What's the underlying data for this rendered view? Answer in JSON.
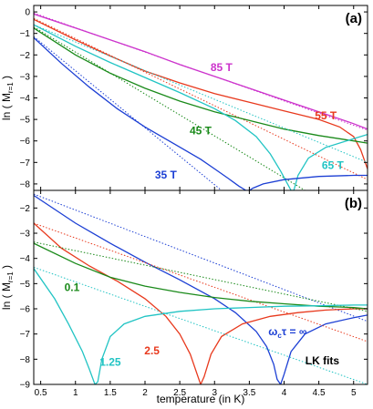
{
  "chart_data": [
    {
      "type": "line",
      "panel_label": "(a)",
      "xlabel": "",
      "ylabel_pre": "ln ( M",
      "ylabel_sub": "r=1",
      "ylabel_post": " )",
      "xlim": [
        0.4,
        5.2
      ],
      "ylim": [
        -8.3,
        0.3
      ],
      "xticks": [
        0.5,
        1,
        1.5,
        2,
        2.5,
        3,
        3.5,
        4,
        4.5,
        5
      ],
      "yticks": [
        0,
        -1,
        -2,
        -3,
        -4,
        -5,
        -6,
        -7,
        -8
      ],
      "show_xtick_labels": false,
      "series": [
        {
          "name": "85 T",
          "color": "#cc33cc",
          "x": [
            0.4,
            1.0,
            1.5,
            2.0,
            2.5,
            3.0,
            3.5,
            4.0,
            4.5,
            5.0,
            5.2
          ],
          "y": [
            -0.1,
            -0.75,
            -1.3,
            -1.85,
            -2.45,
            -3.0,
            -3.55,
            -4.1,
            -4.65,
            -5.2,
            -5.45
          ],
          "fit": {
            "x": [
              0.4,
              5.2
            ],
            "y": [
              -0.05,
              -5.5
            ]
          }
        },
        {
          "name": "55 T",
          "color": "#e8391d",
          "x": [
            0.4,
            1.0,
            1.5,
            2.0,
            2.5,
            3.0,
            3.5,
            4.0,
            4.5,
            4.8,
            5.0,
            5.1,
            5.2
          ],
          "y": [
            -0.35,
            -1.3,
            -2.05,
            -2.75,
            -3.3,
            -3.8,
            -4.2,
            -4.6,
            -5.0,
            -5.35,
            -5.8,
            -6.4,
            -7.3
          ],
          "fit": {
            "x": [
              0.4,
              5.2
            ],
            "y": [
              -0.3,
              -7.8
            ]
          }
        },
        {
          "name": "45 T",
          "color": "#1a8a1a",
          "x": [
            0.4,
            1.0,
            1.5,
            2.0,
            2.5,
            3.0,
            3.5,
            4.0,
            4.5,
            5.0,
            5.2
          ],
          "y": [
            -0.75,
            -2.0,
            -2.85,
            -3.55,
            -4.15,
            -4.65,
            -5.05,
            -5.45,
            -5.75,
            -6.0,
            -6.1
          ],
          "fit": {
            "x": [
              0.4,
              4.3
            ],
            "y": [
              -0.7,
              -8.3
            ]
          }
        },
        {
          "name": "65 T",
          "color": "#22c4c4",
          "x": [
            0.4,
            1.0,
            1.5,
            2.0,
            2.5,
            3.0,
            3.3,
            3.6,
            3.8,
            3.95,
            4.05,
            4.1,
            4.12,
            4.14,
            4.2,
            4.35,
            4.6,
            5.0,
            5.2
          ],
          "y": [
            -0.6,
            -1.6,
            -2.35,
            -3.05,
            -3.75,
            -4.5,
            -5.05,
            -5.8,
            -6.6,
            -7.4,
            -8.0,
            -8.3,
            -8.3,
            -8.3,
            -7.6,
            -6.8,
            -6.3,
            -5.9,
            -5.7
          ],
          "fit": {
            "x": [
              0.4,
              5.2
            ],
            "y": [
              -0.6,
              -7.0
            ]
          }
        },
        {
          "name": "35 T",
          "color": "#1c3fd4",
          "x": [
            0.4,
            0.8,
            1.2,
            1.6,
            2.0,
            2.4,
            2.8,
            3.0,
            3.2,
            3.35,
            3.45,
            3.5,
            3.55,
            3.7,
            4.0,
            4.5,
            5.0,
            5.2
          ],
          "y": [
            -1.2,
            -2.4,
            -3.5,
            -4.5,
            -5.35,
            -6.1,
            -6.85,
            -7.3,
            -7.75,
            -8.1,
            -8.3,
            -8.3,
            -8.2,
            -8.0,
            -7.8,
            -7.65,
            -7.6,
            -7.6
          ],
          "fit": {
            "x": [
              0.4,
              3.1
            ],
            "y": [
              -1.15,
              -8.3
            ]
          }
        }
      ],
      "annotations": [
        {
          "text": "85 T",
          "x": 3.1,
          "y": -2.75,
          "color": "#cc33cc"
        },
        {
          "text": "55 T",
          "x": 4.6,
          "y": -5.0,
          "color": "#e8391d"
        },
        {
          "text": "45 T",
          "x": 2.8,
          "y": -5.7,
          "color": "#1a8a1a"
        },
        {
          "text": "65 T",
          "x": 4.7,
          "y": -7.3,
          "color": "#22c4c4"
        },
        {
          "text": "35 T",
          "x": 2.3,
          "y": -7.75,
          "color": "#1c3fd4"
        }
      ]
    },
    {
      "type": "line",
      "panel_label": "(b)",
      "xlabel": "temperature (in K)",
      "ylabel_pre": "ln ( M",
      "ylabel_sub": "r=1",
      "ylabel_post": " )",
      "xlim": [
        0.4,
        5.2
      ],
      "ylim": [
        -9.0,
        -1.3
      ],
      "xticks": [
        0.5,
        1,
        1.5,
        2,
        2.5,
        3,
        3.5,
        4,
        4.5,
        5
      ],
      "xtick_labels": [
        "0.5",
        "1",
        "1.5",
        "2",
        "2.5",
        "3",
        "3.5",
        "4",
        "4.5",
        "5"
      ],
      "yticks": [
        -2,
        -3,
        -4,
        -5,
        -6,
        -7,
        -8,
        -9
      ],
      "show_xtick_labels": true,
      "series": [
        {
          "name": "ω_c τ = ∞",
          "color": "#1c3fd4",
          "x": [
            0.4,
            1.0,
            1.5,
            2.0,
            2.5,
            3.0,
            3.3,
            3.6,
            3.75,
            3.85,
            3.9,
            3.95,
            4.0,
            4.1,
            4.3,
            4.6,
            5.0,
            5.2
          ],
          "y": [
            -1.5,
            -2.6,
            -3.4,
            -4.15,
            -4.85,
            -5.6,
            -6.15,
            -6.9,
            -7.5,
            -8.2,
            -8.8,
            -9.0,
            -8.6,
            -7.7,
            -7.0,
            -6.6,
            -6.35,
            -6.25
          ],
          "fit": {
            "x": [
              0.4,
              5.2
            ],
            "y": [
              -1.45,
              -6.5
            ]
          }
        },
        {
          "name": "2.5",
          "color": "#e8391d",
          "x": [
            0.4,
            0.8,
            1.2,
            1.6,
            2.0,
            2.3,
            2.5,
            2.65,
            2.75,
            2.8,
            2.85,
            2.95,
            3.1,
            3.4,
            3.8,
            4.2,
            4.6,
            5.0,
            5.2
          ],
          "y": [
            -2.6,
            -3.6,
            -4.3,
            -4.9,
            -5.6,
            -6.3,
            -7.0,
            -7.8,
            -8.6,
            -9.0,
            -8.7,
            -7.8,
            -7.1,
            -6.6,
            -6.3,
            -6.15,
            -6.05,
            -6.0,
            -6.0
          ],
          "fit": {
            "x": [
              0.4,
              5.2
            ],
            "y": [
              -2.6,
              -7.3
            ]
          }
        },
        {
          "name": "0.1",
          "color": "#1a8a1a",
          "x": [
            0.4,
            1.0,
            1.5,
            2.0,
            2.5,
            3.0,
            3.5,
            4.0,
            4.5,
            5.0,
            5.2
          ],
          "y": [
            -3.4,
            -4.2,
            -4.75,
            -5.1,
            -5.35,
            -5.55,
            -5.7,
            -5.8,
            -5.9,
            -5.95,
            -6.0
          ],
          "fit": {
            "x": [
              0.4,
              5.2
            ],
            "y": [
              -3.35,
              -6.1
            ]
          }
        },
        {
          "name": "1.25",
          "color": "#22c4c4",
          "x": [
            0.4,
            0.7,
            0.9,
            1.1,
            1.2,
            1.28,
            1.32,
            1.38,
            1.5,
            1.7,
            2.0,
            2.5,
            3.0,
            3.5,
            4.0,
            4.5,
            5.0,
            5.2
          ],
          "y": [
            -4.4,
            -5.6,
            -6.6,
            -7.7,
            -8.4,
            -9.0,
            -8.9,
            -8.0,
            -7.1,
            -6.6,
            -6.3,
            -6.1,
            -6.0,
            -5.95,
            -5.9,
            -5.88,
            -5.85,
            -5.85
          ],
          "fit": {
            "x": [
              0.4,
              5.2
            ],
            "y": [
              -4.35,
              -9.0
            ]
          }
        }
      ],
      "annotations": [
        {
          "text": "0.1",
          "x": 0.95,
          "y": -5.3,
          "color": "#1a8a1a"
        },
        {
          "text": "2.5",
          "x": 2.1,
          "y": -7.8,
          "color": "#e8391d"
        },
        {
          "text": "1.25",
          "x": 1.5,
          "y": -8.25,
          "color": "#22c4c4"
        },
        {
          "text": "ω",
          "sub": "c",
          "post": "τ = ∞",
          "x": 4.05,
          "y": -7.05,
          "color": "#1c3fd4"
        },
        {
          "text": "LK fits",
          "x": 4.55,
          "y": -8.2,
          "color": "#000000"
        }
      ]
    }
  ]
}
